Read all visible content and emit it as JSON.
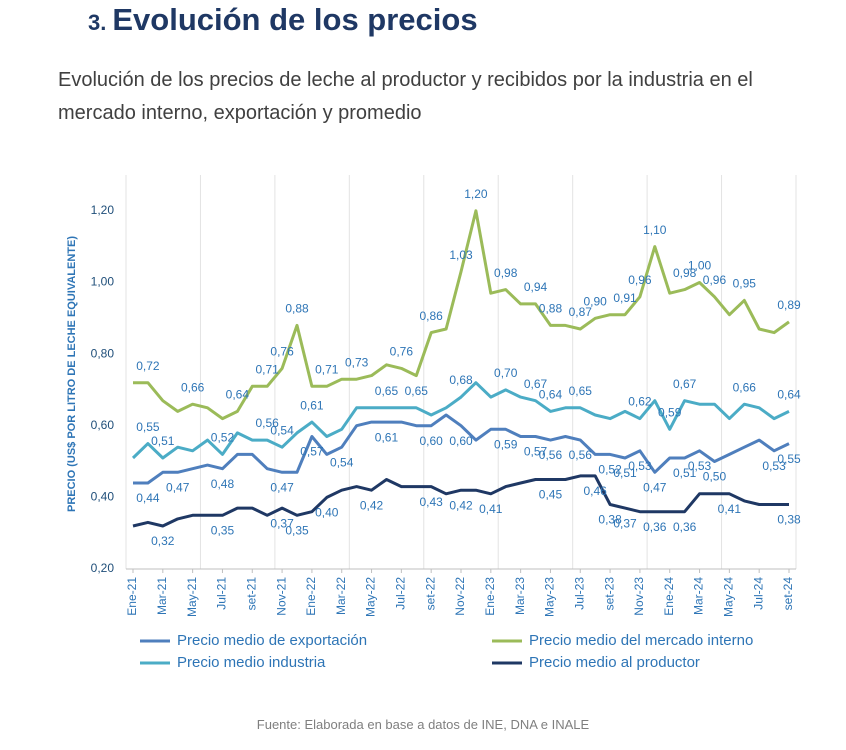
{
  "chart_data": {
    "type": "line",
    "section_number": "3.",
    "title": "Evolución de los precios",
    "subtitle": "Evolución de los precios de leche al productor y recibidos por la industria en el mercado interno, exportación y promedio",
    "ylabel": "PRECIO (US$ POR LITRO DE LECHE EQUIVALENTE)",
    "source": "Fuente: Elaborada en base a datos de INE, DNA e INALE",
    "categories": [
      "Ene-21",
      null,
      "Mar-21",
      null,
      "May-21",
      null,
      "Jul-21",
      null,
      "set-21",
      null,
      "Nov-21",
      null,
      "Ene-22",
      null,
      "Mar-22",
      null,
      "May-22",
      null,
      "Jul-22",
      null,
      "set-22",
      null,
      "Nov-22",
      null,
      "Ene-23",
      null,
      "Mar-23",
      null,
      "May-23",
      null,
      "Jul-23",
      null,
      "set-23",
      null,
      "Nov-23",
      null,
      "Ene-24",
      null,
      "Mar-24",
      null,
      "May-24",
      null,
      "Jul-24",
      null,
      "set-24"
    ],
    "ylim": [
      0.2,
      1.3
    ],
    "yticks": [
      {
        "value": 0.2,
        "label": "0,20"
      },
      {
        "value": 0.4,
        "label": "0,40"
      },
      {
        "value": 0.6,
        "label": "0,60"
      },
      {
        "value": 0.8,
        "label": "0,80"
      },
      {
        "value": 1.0,
        "label": "1,00"
      },
      {
        "value": 1.2,
        "label": "1,20"
      }
    ],
    "series": [
      {
        "name": "Precio medio de exportación",
        "color": "#4f7fbd",
        "label_side": "below",
        "values": [
          0.44,
          0.44,
          0.47,
          0.47,
          0.48,
          0.49,
          0.48,
          0.52,
          0.52,
          0.48,
          0.47,
          0.47,
          0.57,
          0.52,
          0.54,
          0.6,
          0.61,
          0.61,
          0.61,
          0.6,
          0.6,
          0.63,
          0.6,
          0.56,
          0.59,
          0.59,
          0.57,
          0.57,
          0.56,
          0.57,
          0.56,
          0.52,
          0.52,
          0.51,
          0.53,
          0.47,
          0.51,
          0.51,
          0.53,
          0.5,
          0.52,
          0.54,
          0.56,
          0.53,
          0.55
        ],
        "value_labels": [
          null,
          "0,44",
          null,
          "0,47",
          null,
          null,
          "0,48",
          null,
          null,
          null,
          "0,47",
          null,
          "0,57",
          null,
          "0,54",
          null,
          null,
          "0,61",
          null,
          null,
          "0,60",
          null,
          "0,60",
          null,
          null,
          "0,59",
          null,
          "0,57",
          "0,56",
          null,
          "0,56",
          null,
          "0,52",
          "0,51",
          "0,53",
          "0,47",
          null,
          "0,51",
          "0,53",
          "0,50",
          null,
          null,
          null,
          "0,53",
          "0,55"
        ]
      },
      {
        "name": "Precio medio del mercado interno",
        "color": "#9bbb59",
        "label_side": "above",
        "values": [
          0.72,
          0.72,
          0.67,
          0.64,
          0.66,
          0.65,
          0.62,
          0.64,
          0.71,
          0.71,
          0.76,
          0.88,
          0.71,
          0.71,
          0.73,
          0.73,
          0.74,
          0.77,
          0.76,
          0.74,
          0.86,
          0.87,
          1.03,
          1.2,
          0.97,
          0.98,
          0.94,
          0.94,
          0.88,
          0.88,
          0.87,
          0.9,
          0.91,
          0.91,
          0.96,
          1.1,
          0.97,
          0.98,
          1.0,
          0.96,
          0.91,
          0.95,
          0.87,
          0.86,
          0.89
        ],
        "value_labels": [
          null,
          "0,72",
          null,
          null,
          "0,66",
          null,
          null,
          "0,64",
          null,
          "0,71",
          "0,76",
          "0,88",
          null,
          "0,71",
          null,
          "0,73",
          null,
          null,
          "0,76",
          null,
          "0,86",
          null,
          "1,03",
          "1,20",
          null,
          "0,98",
          null,
          "0,94",
          "0,88",
          null,
          "0,87",
          "0,90",
          null,
          "0,91",
          "0,96",
          "1,10",
          null,
          "0,98",
          "1,00",
          "0,96",
          null,
          "0,95",
          null,
          null,
          "0,89"
        ]
      },
      {
        "name": "Precio medio industria",
        "color": "#4bacc6",
        "label_side": "above",
        "values": [
          0.51,
          0.55,
          0.51,
          0.54,
          0.53,
          0.56,
          0.52,
          0.58,
          0.56,
          0.56,
          0.54,
          0.58,
          0.61,
          0.57,
          0.59,
          0.65,
          0.65,
          0.65,
          0.65,
          0.65,
          0.63,
          0.65,
          0.68,
          0.72,
          0.68,
          0.7,
          0.68,
          0.67,
          0.64,
          0.65,
          0.65,
          0.63,
          0.62,
          0.64,
          0.62,
          0.67,
          0.59,
          0.67,
          0.66,
          0.66,
          0.62,
          0.66,
          0.65,
          0.62,
          0.64
        ],
        "value_labels": [
          null,
          "0,55",
          "0,51",
          null,
          null,
          null,
          "0,52",
          null,
          null,
          "0,56",
          "0,54",
          null,
          "0,61",
          null,
          null,
          null,
          null,
          "0,65",
          null,
          "0,65",
          null,
          null,
          "0,68",
          null,
          null,
          "0,70",
          null,
          "0,67",
          "0,64",
          null,
          "0,65",
          null,
          null,
          null,
          "0,62",
          null,
          "0,59",
          "0,67",
          null,
          null,
          null,
          "0,66",
          null,
          null,
          "0,64"
        ]
      },
      {
        "name": "Precio medio al productor",
        "color": "#1f3864",
        "label_side": "below",
        "values": [
          0.32,
          0.33,
          0.32,
          0.34,
          0.35,
          0.35,
          0.35,
          0.37,
          0.37,
          0.35,
          0.37,
          0.35,
          0.36,
          0.4,
          0.42,
          0.43,
          0.42,
          0.45,
          0.43,
          0.43,
          0.43,
          0.41,
          0.42,
          0.42,
          0.41,
          0.43,
          0.44,
          0.45,
          0.45,
          0.45,
          0.46,
          0.46,
          0.38,
          0.37,
          0.36,
          0.36,
          0.36,
          0.36,
          0.41,
          0.41,
          0.41,
          0.39,
          0.38,
          0.38,
          0.38
        ],
        "value_labels": [
          null,
          null,
          "0,32",
          null,
          null,
          null,
          "0,35",
          null,
          null,
          null,
          "0,37",
          "0,35",
          null,
          "0,40",
          null,
          null,
          "0,42",
          null,
          null,
          null,
          "0,43",
          null,
          "0,42",
          null,
          "0,41",
          null,
          null,
          null,
          "0,45",
          null,
          null,
          "0,46",
          "0,38",
          "0,37",
          null,
          "0,36",
          null,
          "0,36",
          null,
          null,
          "0,41",
          null,
          null,
          null,
          "0,38"
        ]
      }
    ],
    "grid": false
  }
}
